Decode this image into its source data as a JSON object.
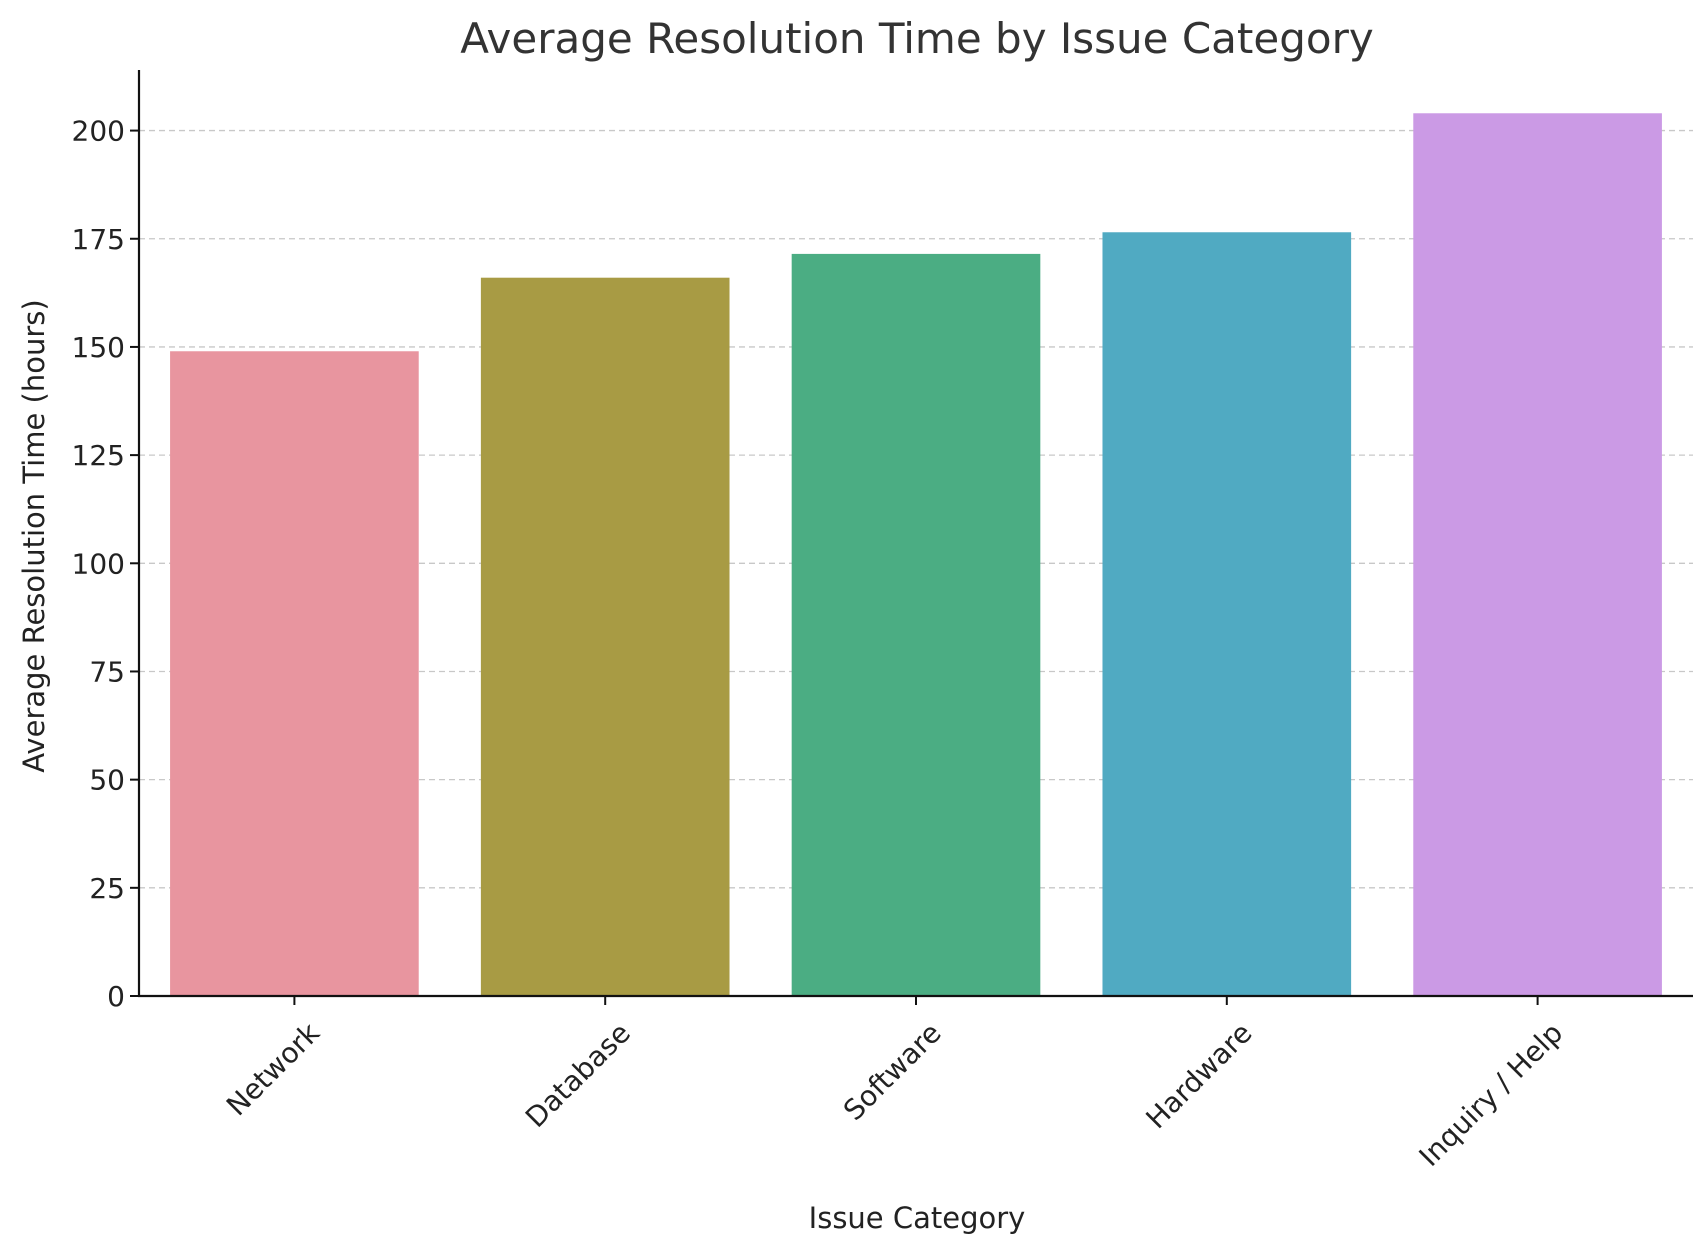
{
  "chart_data": {
    "type": "bar",
    "title": "Average Resolution Time by Issue Category",
    "xlabel": "Issue Category",
    "ylabel": "Average Resolution Time (hours)",
    "categories": [
      "Network",
      "Database",
      "Software",
      "Hardware",
      "Inquiry / Help"
    ],
    "values": [
      149,
      166,
      171.5,
      176.5,
      204
    ],
    "colors": [
      "#e8959f",
      "#a89b44",
      "#4bad83",
      "#50aac2",
      "#cb9ae5"
    ],
    "ylim": [
      0,
      214
    ],
    "yticks": [
      0,
      25,
      50,
      75,
      100,
      125,
      150,
      175,
      200
    ],
    "grid": "y-dashed",
    "legend": "none"
  }
}
